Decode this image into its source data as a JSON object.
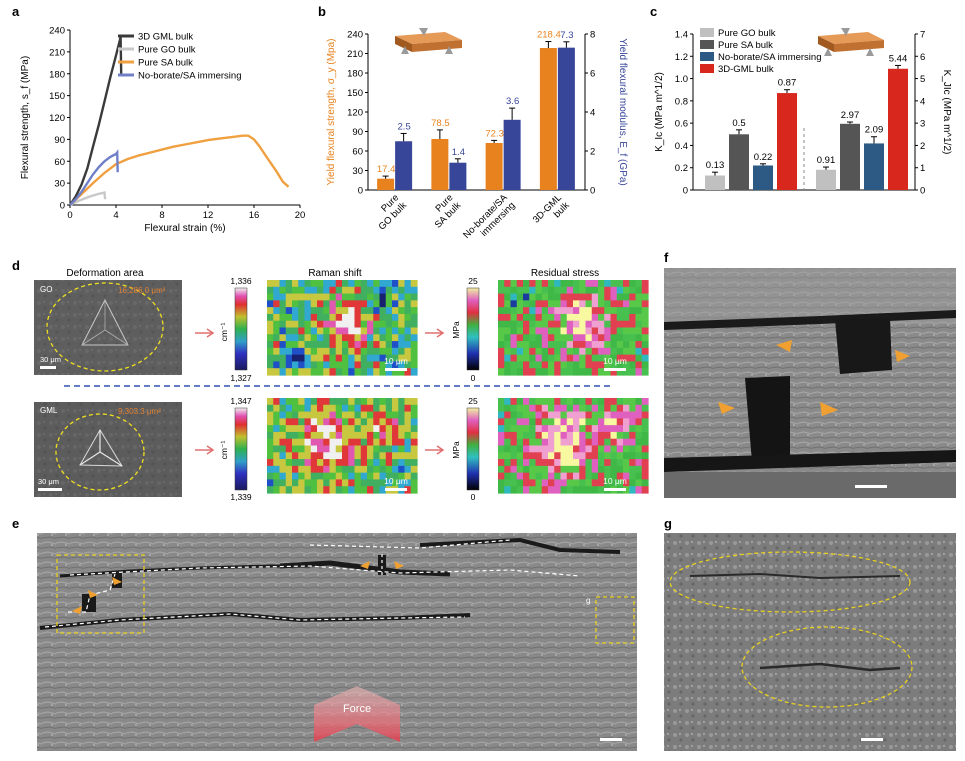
{
  "panels": {
    "a": {
      "letter": "a"
    },
    "b": {
      "letter": "b"
    },
    "c": {
      "letter": "c"
    },
    "d": {
      "letter": "d",
      "col_titles": [
        "Deformation area",
        "Raman shift",
        "Residual stress"
      ],
      "rows": [
        {
          "tag": "GO",
          "area": "16,286.0 μm²",
          "cb_top": "1,336",
          "cb_bottom": "1,327",
          "cb_unit": "cm⁻¹",
          "stress_top": "25",
          "stress_bottom": "0",
          "stress_unit": "MPa",
          "scale_sem": "30 μm",
          "scale_map": "10 μm"
        },
        {
          "tag": "GML",
          "area": "9,303.3 μm²",
          "cb_top": "1,347",
          "cb_bottom": "1,339",
          "cb_unit": "cm⁻¹",
          "stress_top": "25",
          "stress_bottom": "0",
          "stress_unit": "MPa",
          "scale_sem": "30 μm",
          "scale_map": "10 μm"
        }
      ]
    },
    "e": {
      "letter": "e",
      "force_label": "Force",
      "inset_label": "g"
    },
    "f": {
      "letter": "f"
    },
    "g": {
      "letter": "g"
    }
  },
  "chart_data": [
    {
      "panel": "a",
      "type": "line",
      "xlabel": "Flexural strain (%)",
      "ylabel": "Flexural strength, s_f (MPa)",
      "xlim": [
        0,
        20
      ],
      "ylim": [
        0,
        240
      ],
      "xticks": [
        0,
        4,
        8,
        12,
        16,
        20
      ],
      "yticks": [
        0,
        30,
        60,
        90,
        120,
        150,
        180,
        210,
        240
      ],
      "legend_position": "top-right",
      "series": [
        {
          "name": "3D GML bulk",
          "color": "#3a3a3a",
          "points": [
            [
              0,
              0
            ],
            [
              0.5,
              12
            ],
            [
              1,
              28
            ],
            [
              1.5,
              50
            ],
            [
              2,
              80
            ],
            [
              2.5,
              110
            ],
            [
              3,
              142
            ],
            [
              3.5,
              175
            ],
            [
              4,
              205
            ],
            [
              4.4,
              230
            ],
            [
              4.45,
              180
            ]
          ]
        },
        {
          "name": "Pure GO bulk",
          "color": "#c8c8c8",
          "points": [
            [
              0,
              0
            ],
            [
              0.8,
              6
            ],
            [
              1.6,
              11
            ],
            [
              2.4,
              15
            ],
            [
              3,
              17
            ],
            [
              3.05,
              8
            ]
          ]
        },
        {
          "name": "Pure SA bulk",
          "color": "#f0a040",
          "points": [
            [
              0,
              0
            ],
            [
              1,
              15
            ],
            [
              2,
              30
            ],
            [
              3,
              44
            ],
            [
              4,
              56
            ],
            [
              5,
              63
            ],
            [
              6,
              68
            ],
            [
              7,
              72
            ],
            [
              8,
              76
            ],
            [
              9,
              80
            ],
            [
              10,
              83
            ],
            [
              11,
              86
            ],
            [
              12,
              89
            ],
            [
              13,
              91
            ],
            [
              14,
              93
            ],
            [
              15,
              95
            ],
            [
              15.5,
              95
            ],
            [
              16,
              90
            ],
            [
              16.5,
              80
            ],
            [
              17,
              68
            ],
            [
              18,
              45
            ],
            [
              18.5,
              32
            ],
            [
              19,
              25
            ]
          ]
        },
        {
          "name": "No-borate/SA immersing",
          "color": "#7080c8",
          "points": [
            [
              0,
              0
            ],
            [
              0.5,
              8
            ],
            [
              1,
              18
            ],
            [
              1.5,
              30
            ],
            [
              2,
              42
            ],
            [
              2.5,
              52
            ],
            [
              3,
              60
            ],
            [
              3.5,
              66
            ],
            [
              4,
              70
            ],
            [
              4.1,
              72
            ],
            [
              4.15,
              45
            ]
          ]
        }
      ]
    },
    {
      "panel": "b",
      "type": "bar",
      "categories": [
        "Pure GO bulk",
        "Pure SA bulk",
        "No-borate/SA immersing",
        "3D-GML bulk"
      ],
      "category_labels": [
        [
          "Pure",
          "GO bulk"
        ],
        [
          "Pure",
          "SA bulk"
        ],
        [
          "No-borate/SA",
          "immersing"
        ],
        [
          "3D-GML",
          "bulk"
        ]
      ],
      "ylabel": "Yield flexural strength, σ_y (Mpa)",
      "y2label": "Yield flexural modulus, E_f (GPa)",
      "ylim": [
        0,
        240
      ],
      "y2lim": [
        0,
        8
      ],
      "yticks": [
        0,
        30,
        60,
        90,
        120,
        150,
        180,
        210,
        240
      ],
      "y2ticks": [
        0,
        2,
        4,
        6,
        8
      ],
      "series": [
        {
          "name": "σ_y",
          "axis": "left",
          "color": "#e8821e",
          "values": [
            17.4,
            78.5,
            72.3,
            218.4
          ],
          "errors": [
            4,
            14,
            4,
            10
          ],
          "labels": [
            "17.4",
            "78.5",
            "72.3",
            "218.4"
          ]
        },
        {
          "name": "E_f",
          "axis": "right",
          "color": "#38469a",
          "values": [
            2.5,
            1.4,
            3.6,
            7.3
          ],
          "errors": [
            0.4,
            0.2,
            0.6,
            0.3
          ],
          "labels": [
            "2.5",
            "1.4",
            "3.6",
            "7.3"
          ]
        }
      ]
    },
    {
      "panel": "c",
      "type": "bar",
      "ylabel": "K_Ic (MPa m^1/2)",
      "y2label": "K_JIc (MPa m^1/2)",
      "ylim": [
        0,
        1.4
      ],
      "y2lim": [
        0,
        7
      ],
      "yticks": [
        0,
        0.2,
        0.4,
        0.6,
        0.8,
        1.0,
        1.2,
        1.4
      ],
      "y2ticks": [
        0,
        1,
        2,
        3,
        4,
        5,
        6,
        7
      ],
      "legend_position": "top-left",
      "series_names": [
        "Pure GO bulk",
        "Pure SA bulk",
        "No-borate/SA immersing",
        "3D-GML bulk"
      ],
      "colors": [
        "#c0c0c0",
        "#555555",
        "#2c5a84",
        "#d8281e"
      ],
      "groups": [
        {
          "axis": "left",
          "values": [
            0.13,
            0.5,
            0.22,
            0.87
          ],
          "errors": [
            0.03,
            0.04,
            0.015,
            0.03
          ],
          "labels": [
            "0.13",
            "0.5",
            "0.22",
            "0.87"
          ]
        },
        {
          "axis": "right",
          "values": [
            0.91,
            2.97,
            2.09,
            5.44
          ],
          "errors": [
            0.12,
            0.08,
            0.3,
            0.15
          ],
          "labels": [
            "0.91",
            "2.97",
            "2.09",
            "5.44"
          ]
        }
      ]
    }
  ]
}
